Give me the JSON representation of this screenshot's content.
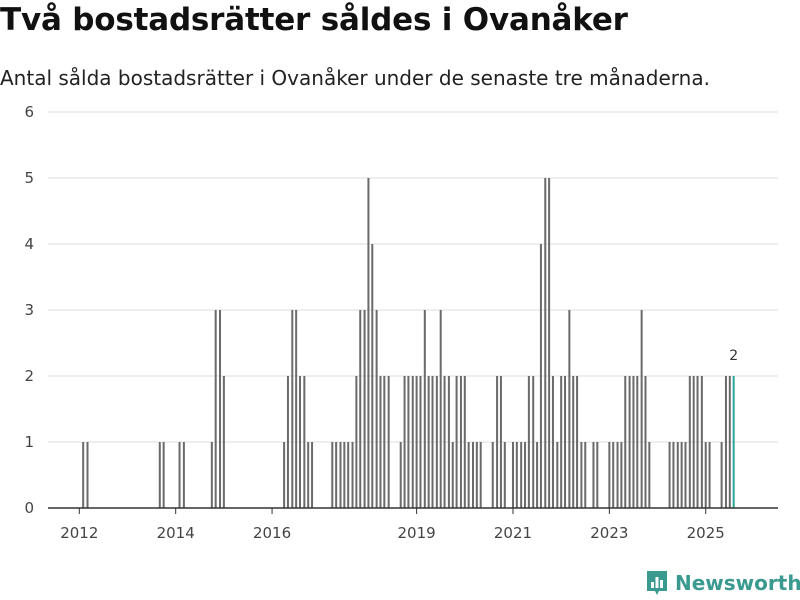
{
  "title": "Två bostadsrätter såldes i Ovanåker",
  "subtitle": "Antal sålda bostadsrätter i Ovanåker under de senaste tre månaderna.",
  "brand": {
    "name": "Newsworthy",
    "icon": "bar-chart-logo-icon",
    "color": "#3a9a8f"
  },
  "colors": {
    "bar": "#6b6b6b",
    "highlight": "#2ba59a",
    "grid": "#dddddd",
    "axis": "#333333"
  },
  "chart_data": {
    "type": "bar",
    "title": "Två bostadsrätter såldes i Ovanåker",
    "xlabel": "",
    "ylabel": "",
    "ylim": [
      0,
      6
    ],
    "yticks": [
      0,
      1,
      2,
      3,
      4,
      5,
      6
    ],
    "xticks": [
      {
        "label": "2012",
        "x": 2012.0
      },
      {
        "label": "2014",
        "x": 2014.0
      },
      {
        "label": "2016",
        "x": 2016.0
      },
      {
        "label": "2019",
        "x": 2019.0
      },
      {
        "label": "2021",
        "x": 2021.0
      },
      {
        "label": "2023",
        "x": 2023.0
      },
      {
        "label": "2025",
        "x": 2025.0
      }
    ],
    "xlim": [
      2011.35,
      2026.5
    ],
    "bar_step": 0.0833,
    "bars": [
      {
        "x": 2012.08,
        "v": 1
      },
      {
        "x": 2012.17,
        "v": 1
      },
      {
        "x": 2013.67,
        "v": 1
      },
      {
        "x": 2013.75,
        "v": 1
      },
      {
        "x": 2014.08,
        "v": 1
      },
      {
        "x": 2014.17,
        "v": 1
      },
      {
        "x": 2014.75,
        "v": 1
      },
      {
        "x": 2014.83,
        "v": 3
      },
      {
        "x": 2014.92,
        "v": 3
      },
      {
        "x": 2015.0,
        "v": 2
      },
      {
        "x": 2016.25,
        "v": 1
      },
      {
        "x": 2016.33,
        "v": 2
      },
      {
        "x": 2016.42,
        "v": 3
      },
      {
        "x": 2016.5,
        "v": 3
      },
      {
        "x": 2016.58,
        "v": 2
      },
      {
        "x": 2016.67,
        "v": 2
      },
      {
        "x": 2016.75,
        "v": 1
      },
      {
        "x": 2016.83,
        "v": 1
      },
      {
        "x": 2017.25,
        "v": 1
      },
      {
        "x": 2017.33,
        "v": 1
      },
      {
        "x": 2017.42,
        "v": 1
      },
      {
        "x": 2017.5,
        "v": 1
      },
      {
        "x": 2017.58,
        "v": 1
      },
      {
        "x": 2017.67,
        "v": 1
      },
      {
        "x": 2017.75,
        "v": 2
      },
      {
        "x": 2017.83,
        "v": 3
      },
      {
        "x": 2017.92,
        "v": 3
      },
      {
        "x": 2018.0,
        "v": 5
      },
      {
        "x": 2018.08,
        "v": 4
      },
      {
        "x": 2018.17,
        "v": 3
      },
      {
        "x": 2018.25,
        "v": 2
      },
      {
        "x": 2018.33,
        "v": 2
      },
      {
        "x": 2018.42,
        "v": 2
      },
      {
        "x": 2018.67,
        "v": 1
      },
      {
        "x": 2018.75,
        "v": 2
      },
      {
        "x": 2018.83,
        "v": 2
      },
      {
        "x": 2018.92,
        "v": 2
      },
      {
        "x": 2019.0,
        "v": 2
      },
      {
        "x": 2019.08,
        "v": 2
      },
      {
        "x": 2019.17,
        "v": 3
      },
      {
        "x": 2019.25,
        "v": 2
      },
      {
        "x": 2019.33,
        "v": 2
      },
      {
        "x": 2019.42,
        "v": 2
      },
      {
        "x": 2019.5,
        "v": 3
      },
      {
        "x": 2019.58,
        "v": 2
      },
      {
        "x": 2019.67,
        "v": 2
      },
      {
        "x": 2019.75,
        "v": 1
      },
      {
        "x": 2019.83,
        "v": 2
      },
      {
        "x": 2019.92,
        "v": 2
      },
      {
        "x": 2020.0,
        "v": 2
      },
      {
        "x": 2020.08,
        "v": 1
      },
      {
        "x": 2020.17,
        "v": 1
      },
      {
        "x": 2020.25,
        "v": 1
      },
      {
        "x": 2020.33,
        "v": 1
      },
      {
        "x": 2020.58,
        "v": 1
      },
      {
        "x": 2020.67,
        "v": 2
      },
      {
        "x": 2020.75,
        "v": 2
      },
      {
        "x": 2020.83,
        "v": 1
      },
      {
        "x": 2021.0,
        "v": 1
      },
      {
        "x": 2021.08,
        "v": 1
      },
      {
        "x": 2021.17,
        "v": 1
      },
      {
        "x": 2021.25,
        "v": 1
      },
      {
        "x": 2021.33,
        "v": 2
      },
      {
        "x": 2021.42,
        "v": 2
      },
      {
        "x": 2021.5,
        "v": 1
      },
      {
        "x": 2021.58,
        "v": 4
      },
      {
        "x": 2021.67,
        "v": 5
      },
      {
        "x": 2021.75,
        "v": 5
      },
      {
        "x": 2021.83,
        "v": 2
      },
      {
        "x": 2021.92,
        "v": 1
      },
      {
        "x": 2022.0,
        "v": 2
      },
      {
        "x": 2022.08,
        "v": 2
      },
      {
        "x": 2022.17,
        "v": 3
      },
      {
        "x": 2022.25,
        "v": 2
      },
      {
        "x": 2022.33,
        "v": 2
      },
      {
        "x": 2022.42,
        "v": 1
      },
      {
        "x": 2022.5,
        "v": 1
      },
      {
        "x": 2022.67,
        "v": 1
      },
      {
        "x": 2022.75,
        "v": 1
      },
      {
        "x": 2023.0,
        "v": 1
      },
      {
        "x": 2023.08,
        "v": 1
      },
      {
        "x": 2023.17,
        "v": 1
      },
      {
        "x": 2023.25,
        "v": 1
      },
      {
        "x": 2023.33,
        "v": 2
      },
      {
        "x": 2023.42,
        "v": 2
      },
      {
        "x": 2023.5,
        "v": 2
      },
      {
        "x": 2023.58,
        "v": 2
      },
      {
        "x": 2023.67,
        "v": 3
      },
      {
        "x": 2023.75,
        "v": 2
      },
      {
        "x": 2023.83,
        "v": 1
      },
      {
        "x": 2024.25,
        "v": 1
      },
      {
        "x": 2024.33,
        "v": 1
      },
      {
        "x": 2024.42,
        "v": 1
      },
      {
        "x": 2024.5,
        "v": 1
      },
      {
        "x": 2024.58,
        "v": 1
      },
      {
        "x": 2024.67,
        "v": 2
      },
      {
        "x": 2024.75,
        "v": 2
      },
      {
        "x": 2024.83,
        "v": 2
      },
      {
        "x": 2024.92,
        "v": 2
      },
      {
        "x": 2025.0,
        "v": 1
      },
      {
        "x": 2025.08,
        "v": 1
      },
      {
        "x": 2025.33,
        "v": 1
      },
      {
        "x": 2025.42,
        "v": 2
      },
      {
        "x": 2025.5,
        "v": 2
      },
      {
        "x": 2025.58,
        "v": 2,
        "highlight": true,
        "label": "2"
      }
    ]
  }
}
